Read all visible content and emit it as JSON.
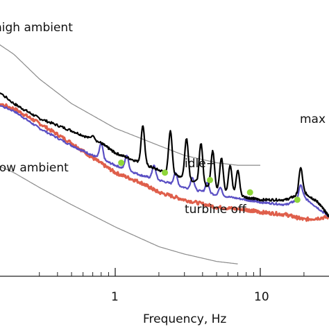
{
  "chart_data": {
    "type": "line",
    "title": "",
    "xlabel": "Frequency, Hz",
    "ylabel": "",
    "x_scale": "log",
    "x_ticks": [
      1,
      10
    ],
    "x_tick_labels": [
      "1",
      "10"
    ],
    "grid": false,
    "annotations": [
      "high ambient",
      "low ambient",
      "idle+",
      "turbine off",
      "max"
    ],
    "series": [
      {
        "name": "high ambient",
        "color": "#8a8a8a",
        "x": [
          0.1,
          0.2,
          0.3,
          0.5,
          1,
          2,
          3,
          5,
          7,
          10
        ],
        "y": [
          0.9,
          0.78,
          0.68,
          0.58,
          0.48,
          0.41,
          0.37,
          0.34,
          0.33,
          0.33
        ]
      },
      {
        "name": "max",
        "color": "#000000",
        "x": [
          0.1,
          0.2,
          0.3,
          0.5,
          0.8,
          1,
          1.5,
          2,
          3,
          5,
          8,
          10,
          15,
          20,
          25,
          30
        ],
        "y": [
          0.72,
          0.58,
          0.52,
          0.47,
          0.42,
          0.38,
          0.34,
          0.31,
          0.28,
          0.23,
          0.2,
          0.19,
          0.19,
          0.22,
          0.18,
          0.12
        ],
        "peaks": [
          {
            "x": 0.7,
            "y": 0.45
          },
          {
            "x": 1.55,
            "y": 0.49
          },
          {
            "x": 2.4,
            "y": 0.47
          },
          {
            "x": 3.1,
            "y": 0.44
          },
          {
            "x": 3.9,
            "y": 0.42
          },
          {
            "x": 4.7,
            "y": 0.39
          },
          {
            "x": 5.4,
            "y": 0.36
          },
          {
            "x": 6.2,
            "y": 0.33
          },
          {
            "x": 7.0,
            "y": 0.31
          },
          {
            "x": 19,
            "y": 0.32
          }
        ]
      },
      {
        "name": "idle+",
        "color": "#5a4fc4",
        "x": [
          0.1,
          0.2,
          0.3,
          0.5,
          0.7,
          1,
          1.5,
          2,
          3,
          5,
          8,
          10,
          15,
          20,
          30
        ],
        "y": [
          0.62,
          0.55,
          0.48,
          0.41,
          0.37,
          0.33,
          0.29,
          0.27,
          0.24,
          0.21,
          0.19,
          0.18,
          0.17,
          0.2,
          0.12
        ],
        "peaks": [
          {
            "x": 0.8,
            "y": 0.42
          },
          {
            "x": 1.2,
            "y": 0.37
          },
          {
            "x": 1.85,
            "y": 0.33
          },
          {
            "x": 2.6,
            "y": 0.3
          },
          {
            "x": 3.4,
            "y": 0.28
          },
          {
            "x": 4.3,
            "y": 0.26
          },
          {
            "x": 5.3,
            "y": 0.24
          },
          {
            "x": 19,
            "y": 0.25
          }
        ]
      },
      {
        "name": "turbine off",
        "color": "#d9432b",
        "x": [
          0.1,
          0.2,
          0.3,
          0.5,
          0.7,
          1,
          1.5,
          2,
          3,
          5,
          8,
          10,
          15,
          20,
          30
        ],
        "y": [
          0.62,
          0.56,
          0.5,
          0.42,
          0.36,
          0.3,
          0.26,
          0.22,
          0.19,
          0.16,
          0.15,
          0.14,
          0.13,
          0.11,
          0.12
        ]
      },
      {
        "name": "low ambient",
        "color": "#8a8a8a",
        "x": [
          0.1,
          0.2,
          0.3,
          0.5,
          1,
          2,
          3,
          5,
          7
        ],
        "y": [
          0.38,
          0.3,
          0.24,
          0.17,
          0.08,
          0.0,
          -0.03,
          -0.06,
          -0.07
        ]
      }
    ],
    "markers": {
      "color": "#8fd63a",
      "x": [
        1.1,
        2.2,
        4.5,
        8.5,
        18
      ],
      "y": [
        0.34,
        0.3,
        0.27,
        0.22,
        0.19
      ]
    }
  }
}
